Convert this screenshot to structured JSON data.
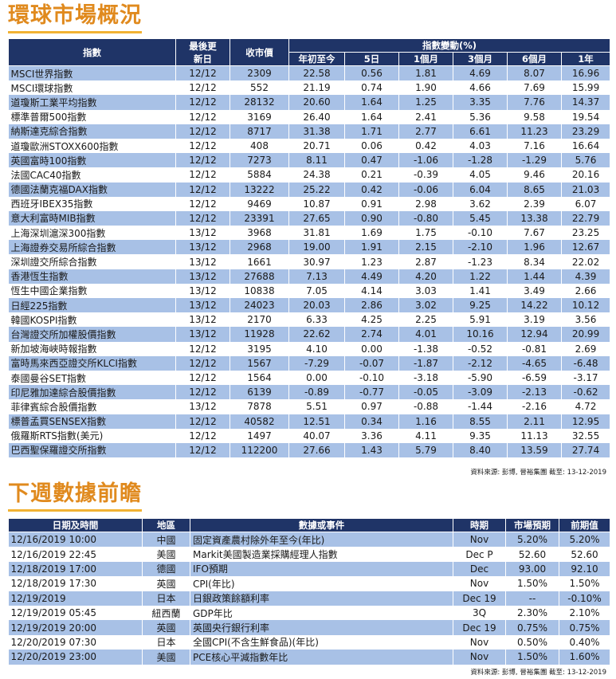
{
  "market": {
    "title": "環球市場概況",
    "headers": {
      "index": "指數",
      "last_update": "最後更新日",
      "close": "收市價",
      "change_group": "指數變動(%)",
      "ytd": "年初至今",
      "d5": "5日",
      "m1": "1個月",
      "m3": "3個月",
      "m6": "6個月",
      "y1": "1年"
    },
    "rows": [
      [
        "MSCI世界指數",
        "12/12",
        "2309",
        "22.58",
        "0.56",
        "1.81",
        "4.69",
        "8.07",
        "16.96"
      ],
      [
        "MSCI環球指數",
        "12/12",
        "552",
        "21.19",
        "0.74",
        "1.90",
        "4.66",
        "7.69",
        "15.99"
      ],
      [
        "道瓊斯工業平均指數",
        "12/12",
        "28132",
        "20.60",
        "1.64",
        "1.25",
        "3.35",
        "7.76",
        "14.37"
      ],
      [
        "標準普爾500指數",
        "12/12",
        "3169",
        "26.40",
        "1.64",
        "2.41",
        "5.36",
        "9.58",
        "19.54"
      ],
      [
        "納斯達克綜合指數",
        "12/12",
        "8717",
        "31.38",
        "1.71",
        "2.77",
        "6.61",
        "11.23",
        "23.29"
      ],
      [
        "道瓊歐洲STOXX600指數",
        "12/12",
        "408",
        "20.71",
        "0.06",
        "0.42",
        "4.03",
        "7.16",
        "16.64"
      ],
      [
        "英國富時100指數",
        "12/12",
        "7273",
        "8.11",
        "0.47",
        "-1.06",
        "-1.28",
        "-1.29",
        "5.76"
      ],
      [
        "法國CAC40指數",
        "12/12",
        "5884",
        "24.38",
        "0.21",
        "-0.39",
        "4.05",
        "9.46",
        "20.16"
      ],
      [
        "德國法蘭克福DAX指數",
        "12/12",
        "13222",
        "25.22",
        "0.42",
        "-0.06",
        "6.04",
        "8.65",
        "21.03"
      ],
      [
        "西班牙IBEX35指數",
        "12/12",
        "9469",
        "10.87",
        "0.91",
        "2.98",
        "3.62",
        "2.39",
        "6.07"
      ],
      [
        "意大利富時MIB指數",
        "12/12",
        "23391",
        "27.65",
        "0.90",
        "-0.80",
        "5.45",
        "13.38",
        "22.79"
      ],
      [
        "上海深圳滬深300指數",
        "13/12",
        "3968",
        "31.81",
        "1.69",
        "1.75",
        "-0.10",
        "7.67",
        "23.25"
      ],
      [
        "上海證券交易所綜合指數",
        "13/12",
        "2968",
        "19.00",
        "1.91",
        "2.15",
        "-2.10",
        "1.96",
        "12.67"
      ],
      [
        "深圳證交所綜合指數",
        "13/12",
        "1661",
        "30.97",
        "1.23",
        "2.87",
        "-1.23",
        "8.34",
        "22.02"
      ],
      [
        "香港恆生指數",
        "13/12",
        "27688",
        "7.13",
        "4.49",
        "4.20",
        "1.22",
        "1.44",
        "4.39"
      ],
      [
        "恆生中國企業指數",
        "13/12",
        "10838",
        "7.05",
        "4.14",
        "3.03",
        "1.41",
        "3.49",
        "2.66"
      ],
      [
        "日經225指數",
        "13/12",
        "24023",
        "20.03",
        "2.86",
        "3.02",
        "9.25",
        "14.22",
        "10.12"
      ],
      [
        "韓國KOSPI指數",
        "13/12",
        "2170",
        "6.33",
        "4.25",
        "2.25",
        "5.91",
        "3.19",
        "3.56"
      ],
      [
        "台灣證交所加權股價指數",
        "13/12",
        "11928",
        "22.62",
        "2.74",
        "4.01",
        "10.16",
        "12.94",
        "20.99"
      ],
      [
        "新加坡海峽時報指數",
        "12/12",
        "3195",
        "4.10",
        "0.00",
        "-1.38",
        "-0.52",
        "-0.81",
        "2.69"
      ],
      [
        "富時馬來西亞證交所KLCI指數",
        "12/12",
        "1567",
        "-7.29",
        "-0.07",
        "-1.87",
        "-2.12",
        "-4.65",
        "-6.48"
      ],
      [
        "泰國曼谷SET指數",
        "12/12",
        "1564",
        "0.00",
        "-0.10",
        "-3.18",
        "-5.90",
        "-6.59",
        "-3.17"
      ],
      [
        "印尼雅加達綜合股價指數",
        "12/12",
        "6139",
        "-0.89",
        "-0.77",
        "-0.05",
        "-3.09",
        "-2.13",
        "-0.62"
      ],
      [
        "菲律賓綜合股價指數",
        "13/12",
        "7878",
        "5.51",
        "0.97",
        "-0.88",
        "-1.44",
        "-2.16",
        "4.72"
      ],
      [
        "標普孟買SENSEX指數",
        "12/12",
        "40582",
        "12.51",
        "0.34",
        "1.16",
        "8.55",
        "2.11",
        "12.95"
      ],
      [
        "俄羅斯RTS指數(美元)",
        "12/12",
        "1497",
        "40.07",
        "3.36",
        "4.11",
        "9.35",
        "11.13",
        "32.55"
      ],
      [
        "巴西聖保羅證交所指數",
        "12/12",
        "112200",
        "27.66",
        "1.43",
        "5.79",
        "8.40",
        "13.59",
        "27.74"
      ]
    ],
    "source": "資料來源: 彭博, 晉裕集團 截至: 13-12-2019"
  },
  "events": {
    "title": "下週數據前瞻",
    "headers": {
      "datetime": "日期及時間",
      "region": "地區",
      "event": "數據或事件",
      "period": "時期",
      "forecast": "市場預期",
      "previous": "前期值"
    },
    "rows": [
      [
        "12/16/2019 10:00",
        "中國",
        "固定資產農村除外年至今(年比)",
        "Nov",
        "5.20%",
        "5.20%"
      ],
      [
        "12/16/2019 22:45",
        "美國",
        "Markit美國製造業採購經理人指數",
        "Dec P",
        "52.60",
        "52.60"
      ],
      [
        "12/18/2019 17:00",
        "德國",
        "IFO預期",
        "Dec",
        "93.00",
        "92.10"
      ],
      [
        "12/18/2019 17:30",
        "英國",
        "CPI(年比)",
        "Nov",
        "1.50%",
        "1.50%"
      ],
      [
        "12/19/2019",
        "日本",
        "日銀政策餘額利率",
        "Dec 19",
        "--",
        "-0.10%"
      ],
      [
        "12/19/2019 05:45",
        "紐西蘭",
        "GDP年比",
        "3Q",
        "2.30%",
        "2.10%"
      ],
      [
        "12/19/2019 20:00",
        "英國",
        "英國央行銀行利率",
        "Dec 19",
        "0.75%",
        "0.75%"
      ],
      [
        "12/20/2019 07:30",
        "日本",
        "全國CPI(不含生鮮食品)(年比)",
        "Nov",
        "0.50%",
        "0.40%"
      ],
      [
        "12/20/2019 23:00",
        "美國",
        "PCE核心平減指數年比",
        "Nov",
        "1.50%",
        "1.60%"
      ]
    ],
    "source": "資料來源: 彭博, 晉裕集團 截至: 13-12-2019"
  }
}
